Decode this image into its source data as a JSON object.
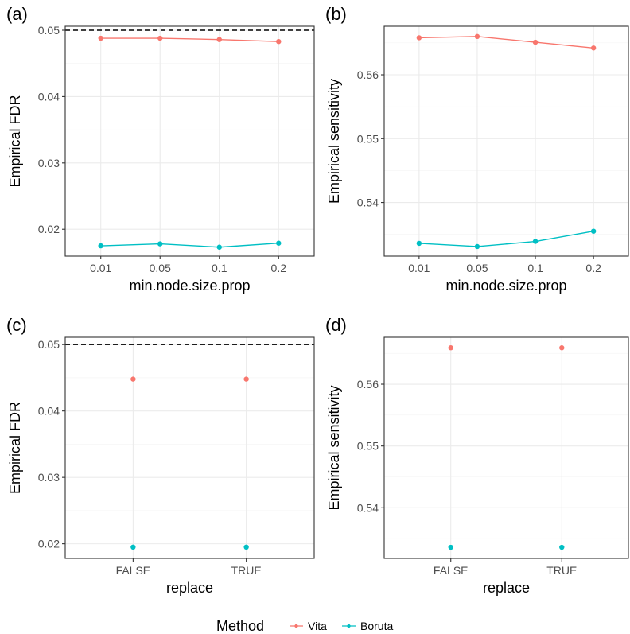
{
  "colors": {
    "vita": "#F8766D",
    "boruta": "#00BFC4",
    "reference": "#000000"
  },
  "legend": {
    "title": "Method",
    "entries": [
      {
        "label": "Vita",
        "color": "#F8766D"
      },
      {
        "label": "Boruta",
        "color": "#00BFC4"
      }
    ]
  },
  "chart_data": [
    {
      "tag": "(a)",
      "type": "line",
      "x": [
        "0.01",
        "0.05",
        "0.1",
        "0.2"
      ],
      "xlabel": "min.node.size.prop",
      "ylabel": "Empirical FDR",
      "ylim": [
        0.01595,
        0.0506
      ],
      "yticks": [
        0.02,
        0.03,
        0.04,
        0.05
      ],
      "ytick_labels": [
        "0.02",
        "0.03",
        "0.04",
        "0.05"
      ],
      "reference_line": 0.05,
      "connect": true,
      "grid": true,
      "series": [
        {
          "name": "Vita",
          "color": "#F8766D",
          "values": [
            0.0488,
            0.0488,
            0.0486,
            0.0483
          ]
        },
        {
          "name": "Boruta",
          "color": "#00BFC4",
          "values": [
            0.0175,
            0.0178,
            0.0173,
            0.0179
          ]
        }
      ]
    },
    {
      "tag": "(b)",
      "type": "line",
      "x": [
        "0.01",
        "0.05",
        "0.1",
        "0.2"
      ],
      "xlabel": "min.node.size.prop",
      "ylabel": "Empirical sensitivity",
      "ylim": [
        0.5316,
        0.5676
      ],
      "yticks": [
        0.54,
        0.55,
        0.56
      ],
      "ytick_labels": [
        "0.54",
        "0.55",
        "0.56"
      ],
      "reference_line": null,
      "connect": true,
      "grid": true,
      "series": [
        {
          "name": "Vita",
          "color": "#F8766D",
          "values": [
            0.5658,
            0.566,
            0.5651,
            0.5642
          ]
        },
        {
          "name": "Boruta",
          "color": "#00BFC4",
          "values": [
            0.5336,
            0.5331,
            0.5339,
            0.5355
          ]
        }
      ]
    },
    {
      "tag": "(c)",
      "type": "scatter",
      "x": [
        "FALSE",
        "TRUE"
      ],
      "xlabel": "replace",
      "ylabel": "Empirical FDR",
      "ylim": [
        0.0178,
        0.0511
      ],
      "yticks": [
        0.02,
        0.03,
        0.04,
        0.05
      ],
      "ytick_labels": [
        "0.02",
        "0.03",
        "0.04",
        "0.05"
      ],
      "reference_line": 0.05,
      "connect": false,
      "grid": true,
      "series": [
        {
          "name": "Vita",
          "color": "#F8766D",
          "values": [
            0.0448,
            0.0448
          ]
        },
        {
          "name": "Boruta",
          "color": "#00BFC4",
          "values": [
            0.0195,
            0.0195
          ]
        }
      ]
    },
    {
      "tag": "(d)",
      "type": "scatter",
      "x": [
        "FALSE",
        "TRUE"
      ],
      "xlabel": "replace",
      "ylabel": "Empirical sensitivity",
      "ylim": [
        0.5318,
        0.5676
      ],
      "yticks": [
        0.54,
        0.55,
        0.56
      ],
      "ytick_labels": [
        "0.54",
        "0.55",
        "0.56"
      ],
      "reference_line": null,
      "connect": false,
      "grid": true,
      "series": [
        {
          "name": "Vita",
          "color": "#F8766D",
          "values": [
            0.5659,
            0.5659
          ]
        },
        {
          "name": "Boruta",
          "color": "#00BFC4",
          "values": [
            0.5336,
            0.5336
          ]
        }
      ]
    }
  ]
}
